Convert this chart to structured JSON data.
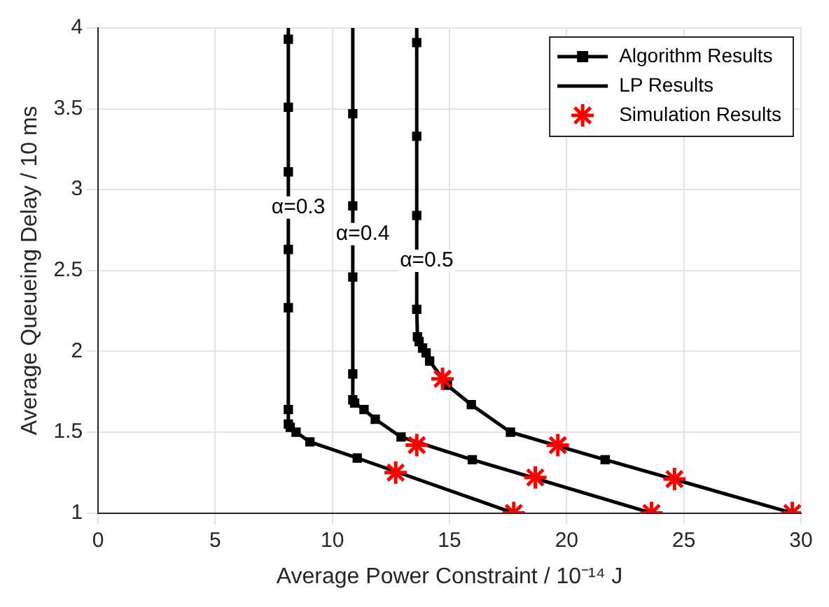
{
  "chart_data": {
    "type": "line",
    "xlabel": "Average Power Constraint / 10⁻¹⁴ J",
    "ylabel": "Average Queueing Delay / 10 ms",
    "xlim": [
      0,
      30
    ],
    "xticks": [
      0,
      5,
      10,
      15,
      20,
      25,
      30
    ],
    "ylim": [
      1,
      4
    ],
    "yticks": [
      1,
      1.5,
      2,
      2.5,
      3,
      3.5,
      4
    ],
    "grid": true,
    "legend": "top right",
    "series": [
      {
        "name": "Algorithm Results",
        "type": "scatter",
        "marker": "square",
        "color": "#000000",
        "x": [
          8.12,
          8.12,
          8.12,
          8.12,
          8.12,
          8.12,
          8.12,
          8.2,
          8.45,
          9.04,
          11.06,
          10.87,
          10.87,
          10.87,
          10.87,
          10.87,
          10.95,
          11.35,
          11.83,
          12.93,
          15.97,
          13.6,
          13.6,
          13.6,
          13.6,
          13.63,
          13.7,
          13.85,
          14.0,
          14.15,
          14.91,
          15.93,
          17.6,
          21.64
        ],
        "values": [
          3.93,
          3.51,
          3.11,
          2.63,
          2.27,
          1.64,
          1.55,
          1.53,
          1.5,
          1.44,
          1.34,
          3.47,
          2.9,
          2.46,
          1.86,
          1.7,
          1.68,
          1.64,
          1.58,
          1.47,
          1.33,
          3.91,
          3.33,
          2.84,
          2.26,
          2.09,
          2.06,
          2.02,
          1.99,
          1.94,
          1.79,
          1.67,
          1.5,
          1.33
        ]
      },
      {
        "name": "LP Results",
        "marker": "none",
        "color": "#000000",
        "x": [
          8.12,
          8.12,
          8.2,
          8.45,
          9.04,
          11.06,
          17.74
        ],
        "values": [
          4,
          1.55,
          1.53,
          1.5,
          1.44,
          1.34,
          1.0
        ]
      },
      {
        "marker": "none",
        "color": "#000000",
        "x": [
          10.87,
          10.87,
          10.95,
          11.35,
          11.83,
          12.93,
          15.97,
          23.62
        ],
        "values": [
          4,
          1.7,
          1.68,
          1.64,
          1.58,
          1.47,
          1.33,
          1.0
        ]
      },
      {
        "marker": "none",
        "color": "#000000",
        "x": [
          13.6,
          13.6,
          13.63,
          13.7,
          13.85,
          14.0,
          14.15,
          14.91,
          15.93,
          17.6,
          21.64,
          29.63
        ],
        "values": [
          4,
          2.26,
          2.09,
          2.06,
          2.02,
          1.99,
          1.94,
          1.79,
          1.67,
          1.5,
          1.33,
          1.0
        ]
      },
      {
        "name": "Simulation Results",
        "type": "scatter",
        "marker": "cross",
        "color": "#ff0000",
        "x": [
          12.7,
          17.74,
          13.6,
          18.66,
          23.62,
          14.7,
          19.62,
          24.6,
          29.63
        ],
        "values": [
          1.25,
          1.0,
          1.42,
          1.22,
          1.0,
          1.83,
          1.42,
          1.21,
          1.0
        ]
      }
    ],
    "annotations": [
      "α=0.3",
      "α=0.4",
      "α=0.5"
    ]
  }
}
